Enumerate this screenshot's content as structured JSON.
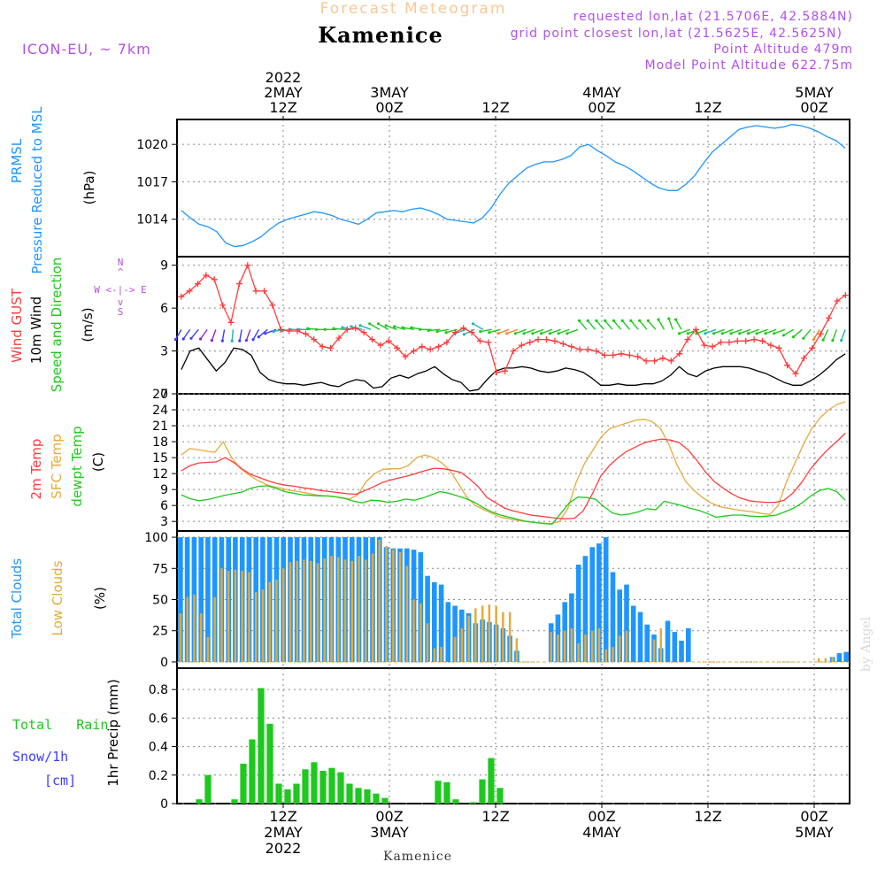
{
  "header": {
    "product": "Forecast Meteogram",
    "location": "Kamenice",
    "model": "ICON-EU, ~ 7km",
    "requested": "requested lon,lat (21.5706E, 42.5884N)",
    "gridpoint": "grid point closest lon,lat (21.5625E, 42.5625N)",
    "point_alt": "Point Altitude 479m",
    "model_alt": "Model Point Altitude 622.75m",
    "footer": "Kamenice",
    "watermark": "by Angel"
  },
  "colors": {
    "blue": "#1e96ff",
    "red": "#ff3c3c",
    "orange": "#e6aa3c",
    "green": "#1ec81e",
    "black": "#000000",
    "purple": "#b450e6",
    "snow": "#3c3cff",
    "title_orange": "#f5c896"
  },
  "time_axis": {
    "hours_total": 76,
    "top_labels": [
      {
        "h": 12,
        "lines": [
          "2022",
          "2MAY",
          "12Z"
        ]
      },
      {
        "h": 24,
        "lines": [
          "3MAY",
          "00Z"
        ]
      },
      {
        "h": 36,
        "lines": [
          "12Z"
        ]
      },
      {
        "h": 48,
        "lines": [
          "4MAY",
          "00Z"
        ]
      },
      {
        "h": 60,
        "lines": [
          "12Z"
        ]
      },
      {
        "h": 72,
        "lines": [
          "5MAY",
          "00Z"
        ]
      }
    ],
    "bottom_labels": [
      {
        "h": 12,
        "lines": [
          "12Z",
          "2MAY",
          "2022"
        ]
      },
      {
        "h": 24,
        "lines": [
          "00Z",
          "3MAY"
        ]
      },
      {
        "h": 36,
        "lines": [
          "12Z"
        ]
      },
      {
        "h": 48,
        "lines": [
          "00Z",
          "4MAY"
        ]
      },
      {
        "h": 60,
        "lines": [
          "12Z"
        ]
      },
      {
        "h": 72,
        "lines": [
          "00Z",
          "5MAY"
        ]
      }
    ]
  },
  "chart_data": [
    {
      "type": "line",
      "title": "PRMSL Pressure Reduced to MSL",
      "ylabel_lines": [
        "PRMSL",
        "Pressure Reduced to MSL"
      ],
      "unit": "(hPa)",
      "ylim": [
        1011,
        1022
      ],
      "yticks": [
        1014,
        1017,
        1020
      ],
      "series": [
        {
          "name": "PRMSL",
          "color": "#1e96ff",
          "values": [
            1014.7,
            1014.1,
            1013.6,
            1013.4,
            1013.0,
            1012.1,
            1011.8,
            1011.9,
            1012.2,
            1012.6,
            1013.2,
            1013.7,
            1014.0,
            1014.2,
            1014.4,
            1014.6,
            1014.5,
            1014.3,
            1014.0,
            1013.8,
            1013.6,
            1014.0,
            1014.5,
            1014.6,
            1014.7,
            1014.6,
            1014.8,
            1014.9,
            1014.7,
            1014.4,
            1014.0,
            1013.9,
            1013.8,
            1013.7,
            1014.1,
            1014.9,
            1016.0,
            1016.9,
            1017.5,
            1018.1,
            1018.4,
            1018.6,
            1018.6,
            1018.8,
            1019.1,
            1019.8,
            1020.0,
            1019.5,
            1019.1,
            1018.6,
            1018.3,
            1017.9,
            1017.4,
            1016.9,
            1016.5,
            1016.3,
            1016.3,
            1016.8,
            1017.5,
            1018.5,
            1019.4,
            1020.0,
            1020.6,
            1021.2,
            1021.4,
            1021.5,
            1021.4,
            1021.3,
            1021.4,
            1021.6,
            1021.5,
            1021.3,
            1021.0,
            1020.6,
            1020.3,
            1019.7
          ]
        }
      ]
    },
    {
      "type": "line",
      "title": "Wind GUST / 10m Wind Speed and Direction",
      "ylabel_lines": [
        {
          "text": "Wind GUST",
          "color": "#ff3c3c"
        },
        {
          "text": "10m Wind",
          "color": "#000000"
        },
        {
          "text": "Speed and Direction",
          "color": "#1ec81e"
        }
      ],
      "unit": "(m/s)",
      "compass": {
        "n": "N",
        "s": "S",
        "w": "W <-|-> E",
        "mid_up": "^",
        "mid_dn": "v"
      },
      "ylim": [
        0,
        9.6
      ],
      "yticks": [
        0,
        3,
        6,
        9
      ],
      "series": [
        {
          "name": "Wind GUST",
          "color": "#ff3c3c",
          "marker": "+",
          "values": [
            6.8,
            7.2,
            7.7,
            8.3,
            8.0,
            6.2,
            5.0,
            7.7,
            9.0,
            7.2,
            7.2,
            6.2,
            4.5,
            4.4,
            4.4,
            4.2,
            3.8,
            3.3,
            3.2,
            3.9,
            4.5,
            4.6,
            4.3,
            3.8,
            3.4,
            3.7,
            3.2,
            2.6,
            3.0,
            3.3,
            3.1,
            3.3,
            3.6,
            4.3,
            4.6,
            4.3,
            3.7,
            3.6,
            1.5,
            1.6,
            3.0,
            3.4,
            3.6,
            3.8,
            3.8,
            3.7,
            3.5,
            3.3,
            3.1,
            3.1,
            3.0,
            2.7,
            2.7,
            2.8,
            2.7,
            2.6,
            2.3,
            2.3,
            2.5,
            2.3,
            2.8,
            3.8,
            4.5,
            3.4,
            3.3,
            3.6,
            3.6,
            3.7,
            3.7,
            3.8,
            3.7,
            3.4,
            3.2,
            2.0,
            1.4,
            2.5,
            3.2,
            4.2,
            5.3,
            6.5,
            6.9
          ]
        },
        {
          "name": "10m Wind",
          "color": "#000000",
          "values": [
            1.7,
            3.0,
            3.2,
            2.4,
            1.6,
            2.2,
            3.2,
            3.1,
            2.7,
            1.5,
            1.0,
            0.8,
            0.7,
            0.7,
            0.6,
            0.7,
            0.8,
            0.6,
            0.5,
            0.8,
            1.0,
            0.9,
            0.4,
            0.5,
            1.1,
            1.3,
            1.1,
            1.4,
            1.6,
            1.9,
            1.4,
            1.0,
            0.8,
            0.2,
            0.3,
            1.0,
            1.6,
            1.8,
            1.8,
            1.9,
            1.8,
            1.6,
            1.5,
            1.6,
            1.8,
            1.7,
            1.5,
            1.1,
            0.6,
            0.6,
            0.7,
            0.6,
            0.6,
            0.7,
            0.7,
            0.9,
            1.3,
            1.9,
            1.4,
            1.2,
            1.6,
            1.8,
            1.9,
            1.9,
            1.9,
            1.8,
            1.6,
            1.4,
            1.1,
            0.8,
            0.6,
            0.6,
            0.9,
            1.3,
            1.8,
            2.4,
            2.8
          ]
        },
        {
          "name": "Wind direction (deg, barb plotted at 4.5 m/s)",
          "values": [
            210,
            215,
            220,
            215,
            200,
            190,
            185,
            190,
            200,
            210,
            230,
            250,
            260,
            265,
            270,
            270,
            275,
            270,
            270,
            275,
            280,
            285,
            290,
            300,
            300,
            290,
            285,
            280,
            280,
            270,
            265,
            260,
            255,
            250,
            245,
            300,
            260,
            255,
            250,
            250,
            250,
            250,
            250,
            250,
            250,
            250,
            250,
            320,
            320,
            320,
            320,
            320,
            320,
            320,
            320,
            320,
            330,
            340,
            330,
            250,
            250,
            250,
            250,
            250,
            250,
            250,
            250,
            250,
            250,
            250,
            250,
            240,
            230,
            220,
            210,
            205,
            200,
            200
          ]
        }
      ]
    },
    {
      "type": "line",
      "title": "2m Temp / SFC Temp / dewpt Temp",
      "ylabel_lines": [
        {
          "text": "2m Temp",
          "color": "#ff3c3c"
        },
        {
          "text": "SFC Temp",
          "color": "#e6aa3c"
        },
        {
          "text": "dewpt Temp",
          "color": "#1ec81e"
        }
      ],
      "unit": "(C)",
      "ylim": [
        1.2,
        27
      ],
      "yticks": [
        3,
        6,
        9,
        12,
        15,
        18,
        21,
        24,
        27
      ],
      "series": [
        {
          "name": "2m Temp",
          "color": "#ff3c3c",
          "values": [
            12.5,
            13.5,
            14.0,
            14.1,
            14.2,
            15.0,
            14.1,
            12.8,
            11.8,
            11.2,
            10.6,
            10.1,
            9.8,
            9.6,
            9.3,
            9.1,
            8.8,
            8.6,
            8.4,
            8.2,
            8.1,
            8.8,
            9.5,
            10.3,
            10.8,
            11.2,
            11.6,
            12.1,
            12.6,
            13.0,
            12.9,
            12.6,
            12.2,
            11.0,
            9.5,
            7.5,
            6.5,
            5.5,
            5.0,
            4.6,
            4.2,
            4.0,
            3.8,
            3.6,
            3.5,
            3.6,
            5.0,
            8.0,
            11.5,
            13.5,
            15.0,
            16.2,
            17.0,
            17.8,
            18.2,
            18.5,
            18.3,
            17.8,
            16.5,
            14.5,
            12.3,
            10.5,
            9.3,
            8.2,
            7.4,
            6.9,
            6.7,
            6.6,
            6.6,
            7.0,
            8.3,
            10.3,
            12.8,
            14.8,
            16.5,
            18.0,
            19.6
          ]
        },
        {
          "name": "SFC Temp",
          "color": "#e6aa3c",
          "values": [
            15.5,
            16.7,
            16.5,
            16.2,
            16.0,
            18.0,
            15.0,
            13.0,
            11.8,
            10.8,
            10.0,
            9.5,
            9.2,
            8.8,
            8.6,
            8.3,
            8.0,
            7.8,
            7.7,
            7.5,
            7.2,
            8.0,
            10.5,
            12.0,
            12.8,
            12.9,
            12.9,
            13.5,
            15.0,
            15.5,
            15.0,
            14.0,
            12.5,
            10.0,
            7.5,
            6.0,
            5.2,
            4.5,
            3.8,
            3.5,
            3.2,
            3.0,
            2.8,
            2.7,
            2.6,
            3.0,
            5.5,
            10.5,
            14.0,
            16.5,
            19.0,
            20.5,
            21.0,
            21.5,
            22.0,
            22.2,
            21.8,
            20.5,
            17.5,
            13.5,
            10.5,
            8.8,
            7.5,
            6.5,
            5.8,
            5.5,
            5.2,
            5.0,
            4.8,
            4.5,
            4.3,
            6.0,
            10.5,
            14.0,
            17.5,
            20.5,
            22.5,
            24.0,
            25.0,
            25.5
          ]
        },
        {
          "name": "dewpt Temp",
          "color": "#1ec81e",
          "values": [
            8.0,
            7.3,
            6.9,
            7.1,
            7.5,
            7.9,
            8.2,
            8.5,
            9.2,
            9.6,
            9.7,
            9.2,
            8.6,
            8.3,
            8.0,
            7.9,
            7.8,
            7.8,
            7.6,
            7.3,
            6.8,
            6.5,
            7.0,
            6.9,
            6.6,
            6.8,
            7.2,
            7.0,
            7.4,
            8.0,
            8.6,
            8.3,
            7.8,
            7.3,
            6.6,
            5.6,
            4.8,
            4.2,
            3.8,
            3.4,
            3.0,
            2.8,
            2.6,
            2.5,
            4.5,
            6.5,
            7.6,
            7.5,
            7.2,
            5.8,
            4.6,
            4.2,
            4.4,
            4.8,
            5.4,
            5.2,
            6.8,
            6.4,
            6.0,
            5.5,
            5.1,
            4.5,
            3.8,
            4.0,
            4.2,
            4.2,
            4.0,
            3.9,
            4.0,
            4.2,
            4.8,
            5.5,
            6.5,
            7.8,
            8.8,
            9.2,
            8.6,
            7.0
          ]
        }
      ]
    },
    {
      "type": "bar",
      "title": "Total Clouds / Low Clouds",
      "ylabel_lines": [
        {
          "text": "Total Clouds",
          "color": "#1e96ff"
        },
        {
          "text": "Low Clouds",
          "color": "#e6aa3c"
        }
      ],
      "unit": "(%)",
      "ylim": [
        -5,
        105
      ],
      "yticks": [
        0,
        25,
        50,
        75,
        100
      ],
      "series": [
        {
          "name": "Total Clouds",
          "color": "#1e96ff",
          "values": [
            100,
            100,
            100,
            100,
            100,
            100,
            100,
            100,
            100,
            100,
            100,
            100,
            100,
            100,
            100,
            100,
            100,
            100,
            100,
            100,
            100,
            100,
            100,
            100,
            100,
            100,
            100,
            100,
            100,
            100,
            92,
            91,
            91,
            91,
            90,
            88,
            69,
            64,
            62,
            48,
            45,
            42,
            39,
            31,
            34,
            32,
            30,
            27,
            21,
            9,
            0,
            0,
            0,
            0,
            31,
            38,
            48,
            55,
            78,
            85,
            92,
            95,
            100,
            72,
            58,
            62,
            45,
            40,
            30,
            22,
            11,
            33,
            24,
            17,
            27,
            0,
            0,
            0,
            0,
            0,
            0,
            0,
            0,
            0,
            0,
            0,
            0,
            0,
            0,
            0,
            0,
            0,
            0,
            0,
            0,
            4,
            7,
            8
          ]
        },
        {
          "name": "Low Clouds",
          "color": "#e6aa3c",
          "values": [
            39,
            52,
            54,
            39,
            20,
            52,
            75,
            73,
            74,
            73,
            72,
            56,
            58,
            64,
            66,
            75,
            80,
            81,
            82,
            81,
            79,
            83,
            85,
            84,
            82,
            81,
            85,
            82,
            87,
            98,
            93,
            90,
            88,
            77,
            50,
            47,
            31,
            11,
            12,
            0,
            20,
            27,
            37,
            43,
            45,
            46,
            45,
            40,
            40,
            19,
            0,
            0,
            0,
            0,
            24,
            22,
            25,
            27,
            15,
            22,
            25,
            27,
            10,
            12,
            21,
            25,
            0,
            0,
            0,
            18,
            27,
            0,
            0,
            0,
            0,
            0,
            0,
            0,
            0,
            0,
            0,
            0,
            0,
            0,
            0,
            0,
            0,
            0,
            0,
            0,
            0,
            0,
            0,
            3,
            3,
            4
          ]
        }
      ]
    },
    {
      "type": "bar",
      "title": "Total Rain / Snow per 1h",
      "ylabel": "1hr Precip (mm)",
      "side_labels": {
        "rain": "Total   Rain",
        "snow": "Snow/1h",
        "cm": "[cm]"
      },
      "ylim": [
        0,
        0.95
      ],
      "yticks": [
        0,
        0.2,
        0.4,
        0.6,
        0.8
      ],
      "ytick_labels": [
        "0",
        "0.2",
        "0.4",
        "0.6",
        "0.8"
      ],
      "series": [
        {
          "name": "Total Rain",
          "color": "#1ec81e",
          "values": [
            0,
            0,
            0.03,
            0.2,
            0,
            0,
            0.03,
            0.28,
            0.45,
            0.81,
            0.56,
            0.14,
            0.1,
            0.14,
            0.24,
            0.29,
            0.23,
            0.25,
            0.22,
            0.14,
            0.11,
            0.1,
            0.07,
            0.04,
            0,
            0,
            0,
            0,
            0,
            0.16,
            0.15,
            0.03,
            0,
            0.01,
            0.17,
            0.32,
            0.11,
            0,
            0,
            0,
            0,
            0,
            0,
            0,
            0,
            0,
            0,
            0,
            0,
            0,
            0,
            0,
            0,
            0,
            0,
            0,
            0,
            0,
            0,
            0,
            0,
            0,
            0,
            0,
            0,
            0,
            0,
            0,
            0,
            0,
            0,
            0,
            0,
            0,
            0,
            0
          ]
        },
        {
          "name": "Snow/1h",
          "color": "#3c3cff",
          "values": []
        }
      ]
    }
  ]
}
